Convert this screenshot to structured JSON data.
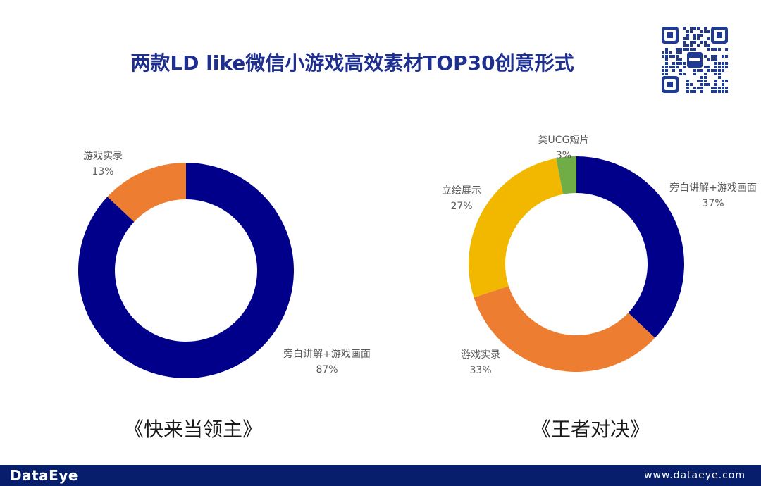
{
  "title": "两款LD like微信小游戏高效素材TOP30创意形式",
  "colors": {
    "navy": "#00008b",
    "orange": "#ed7d31",
    "yellow": "#f2b800",
    "green": "#70ad47",
    "title": "#1f2f8f",
    "footer_bg": "#061e6b"
  },
  "qr_icon": "qr-code-icon",
  "chart_data": [
    {
      "type": "pie",
      "style": "donut",
      "caption": "《快来当领主》",
      "slices": [
        {
          "label": "旁白讲解+游戏画面",
          "value": 87,
          "value_text": "87%",
          "color": "#00008b"
        },
        {
          "label": "游戏实录",
          "value": 13,
          "value_text": "13%",
          "color": "#ed7d31"
        }
      ]
    },
    {
      "type": "pie",
      "style": "donut",
      "caption": "《王者对决》",
      "slices": [
        {
          "label": "旁白讲解+游戏画面",
          "value": 37,
          "value_text": "37%",
          "color": "#00008b"
        },
        {
          "label": "游戏实录",
          "value": 33,
          "value_text": "33%",
          "color": "#ed7d31"
        },
        {
          "label": "立绘展示",
          "value": 27,
          "value_text": "27%",
          "color": "#f2b800"
        },
        {
          "label": "类UCG短片",
          "value": 3,
          "value_text": "3%",
          "color": "#70ad47"
        }
      ]
    }
  ],
  "footer": {
    "brand": "DataEye",
    "website": "www.dataeye.com"
  }
}
